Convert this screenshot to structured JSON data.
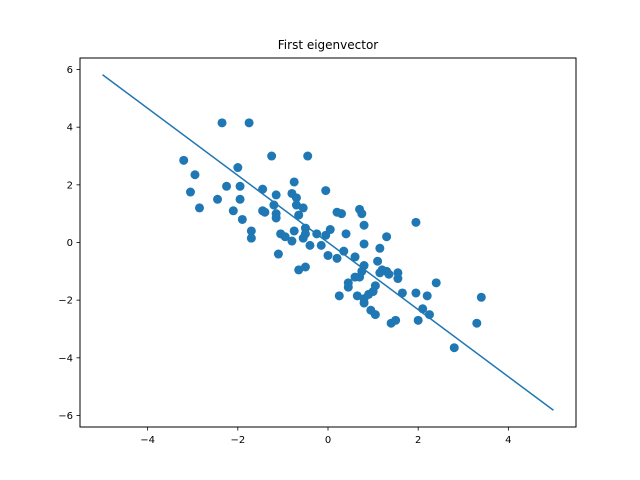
{
  "chart_data": {
    "type": "scatter",
    "title": "First eigenvector",
    "xlabel": "",
    "ylabel": "",
    "xlim": [
      -5.5,
      5.5
    ],
    "ylim": [
      -6.4,
      6.4
    ],
    "xticks": [
      -4,
      -2,
      0,
      2,
      4
    ],
    "yticks": [
      -6,
      -4,
      -2,
      0,
      2,
      4,
      6
    ],
    "xtick_labels": [
      "−4",
      "−2",
      "0",
      "2",
      "4"
    ],
    "ytick_labels": [
      "−6",
      "−4",
      "−2",
      "0",
      "2",
      "4",
      "6"
    ],
    "grid": false,
    "color": "#1f77b4",
    "series": [
      {
        "type": "scatter",
        "points": [
          [
            -3.2,
            2.85
          ],
          [
            -2.95,
            2.35
          ],
          [
            -3.05,
            1.75
          ],
          [
            -2.85,
            1.2
          ],
          [
            -2.35,
            4.15
          ],
          [
            -1.75,
            4.15
          ],
          [
            -2.25,
            1.95
          ],
          [
            -2.0,
            2.6
          ],
          [
            -1.95,
            1.95
          ],
          [
            -2.45,
            1.5
          ],
          [
            -2.1,
            1.1
          ],
          [
            -1.95,
            1.5
          ],
          [
            -1.9,
            0.8
          ],
          [
            -1.7,
            0.4
          ],
          [
            -1.7,
            0.15
          ],
          [
            -1.25,
            3.0
          ],
          [
            -1.45,
            1.85
          ],
          [
            -1.45,
            1.1
          ],
          [
            -1.4,
            1.05
          ],
          [
            -1.2,
            1.3
          ],
          [
            -1.15,
            1.65
          ],
          [
            -1.15,
            1.0
          ],
          [
            -1.15,
            0.85
          ],
          [
            -1.05,
            0.3
          ],
          [
            -1.1,
            -0.4
          ],
          [
            -0.95,
            0.2
          ],
          [
            -0.8,
            1.7
          ],
          [
            -0.75,
            2.1
          ],
          [
            -0.7,
            1.55
          ],
          [
            -0.7,
            1.3
          ],
          [
            -0.65,
            0.95
          ],
          [
            -0.75,
            0.4
          ],
          [
            -0.8,
            0.05
          ],
          [
            -0.55,
            1.2
          ],
          [
            -0.5,
            0.5
          ],
          [
            -0.5,
            0.3
          ],
          [
            -0.55,
            0.15
          ],
          [
            -0.45,
            3.0
          ],
          [
            -0.4,
            -0.1
          ],
          [
            -0.65,
            -0.95
          ],
          [
            -0.5,
            -0.85
          ],
          [
            -0.25,
            0.3
          ],
          [
            -0.15,
            -0.1
          ],
          [
            -0.05,
            1.8
          ],
          [
            -0.05,
            0.25
          ],
          [
            0.05,
            0.45
          ],
          [
            0.0,
            -0.45
          ],
          [
            0.2,
            -0.55
          ],
          [
            0.3,
            1.0
          ],
          [
            0.2,
            1.05
          ],
          [
            0.4,
            0.3
          ],
          [
            0.35,
            -0.3
          ],
          [
            0.45,
            -1.4
          ],
          [
            0.45,
            -1.55
          ],
          [
            0.25,
            -1.85
          ],
          [
            0.6,
            -0.5
          ],
          [
            0.6,
            -1.2
          ],
          [
            0.65,
            -1.85
          ],
          [
            0.7,
            1.15
          ],
          [
            0.75,
            1.0
          ],
          [
            0.8,
            0.6
          ],
          [
            0.8,
            -0.05
          ],
          [
            0.8,
            -0.8
          ],
          [
            0.75,
            -1.0
          ],
          [
            0.7,
            -1.2
          ],
          [
            0.8,
            -1.95
          ],
          [
            0.8,
            -2.1
          ],
          [
            0.9,
            -1.8
          ],
          [
            0.95,
            -2.35
          ],
          [
            1.05,
            -2.5
          ],
          [
            1.0,
            -1.7
          ],
          [
            1.05,
            -1.5
          ],
          [
            1.1,
            -0.65
          ],
          [
            1.15,
            -0.2
          ],
          [
            1.15,
            -1.05
          ],
          [
            1.2,
            -0.95
          ],
          [
            1.3,
            0.2
          ],
          [
            1.3,
            -1.0
          ],
          [
            1.35,
            -1.1
          ],
          [
            1.4,
            -2.8
          ],
          [
            1.5,
            -2.7
          ],
          [
            1.55,
            -1.05
          ],
          [
            1.55,
            -1.25
          ],
          [
            1.65,
            -1.75
          ],
          [
            1.95,
            0.7
          ],
          [
            1.95,
            -1.75
          ],
          [
            2.0,
            -2.7
          ],
          [
            2.1,
            -2.3
          ],
          [
            2.2,
            -1.85
          ],
          [
            2.25,
            -2.5
          ],
          [
            2.4,
            -1.4
          ],
          [
            2.8,
            -3.65
          ],
          [
            3.3,
            -2.8
          ],
          [
            3.4,
            -1.9
          ]
        ]
      },
      {
        "type": "line",
        "points": [
          [
            -5,
            5.82
          ],
          [
            5,
            -5.82
          ]
        ]
      }
    ]
  }
}
